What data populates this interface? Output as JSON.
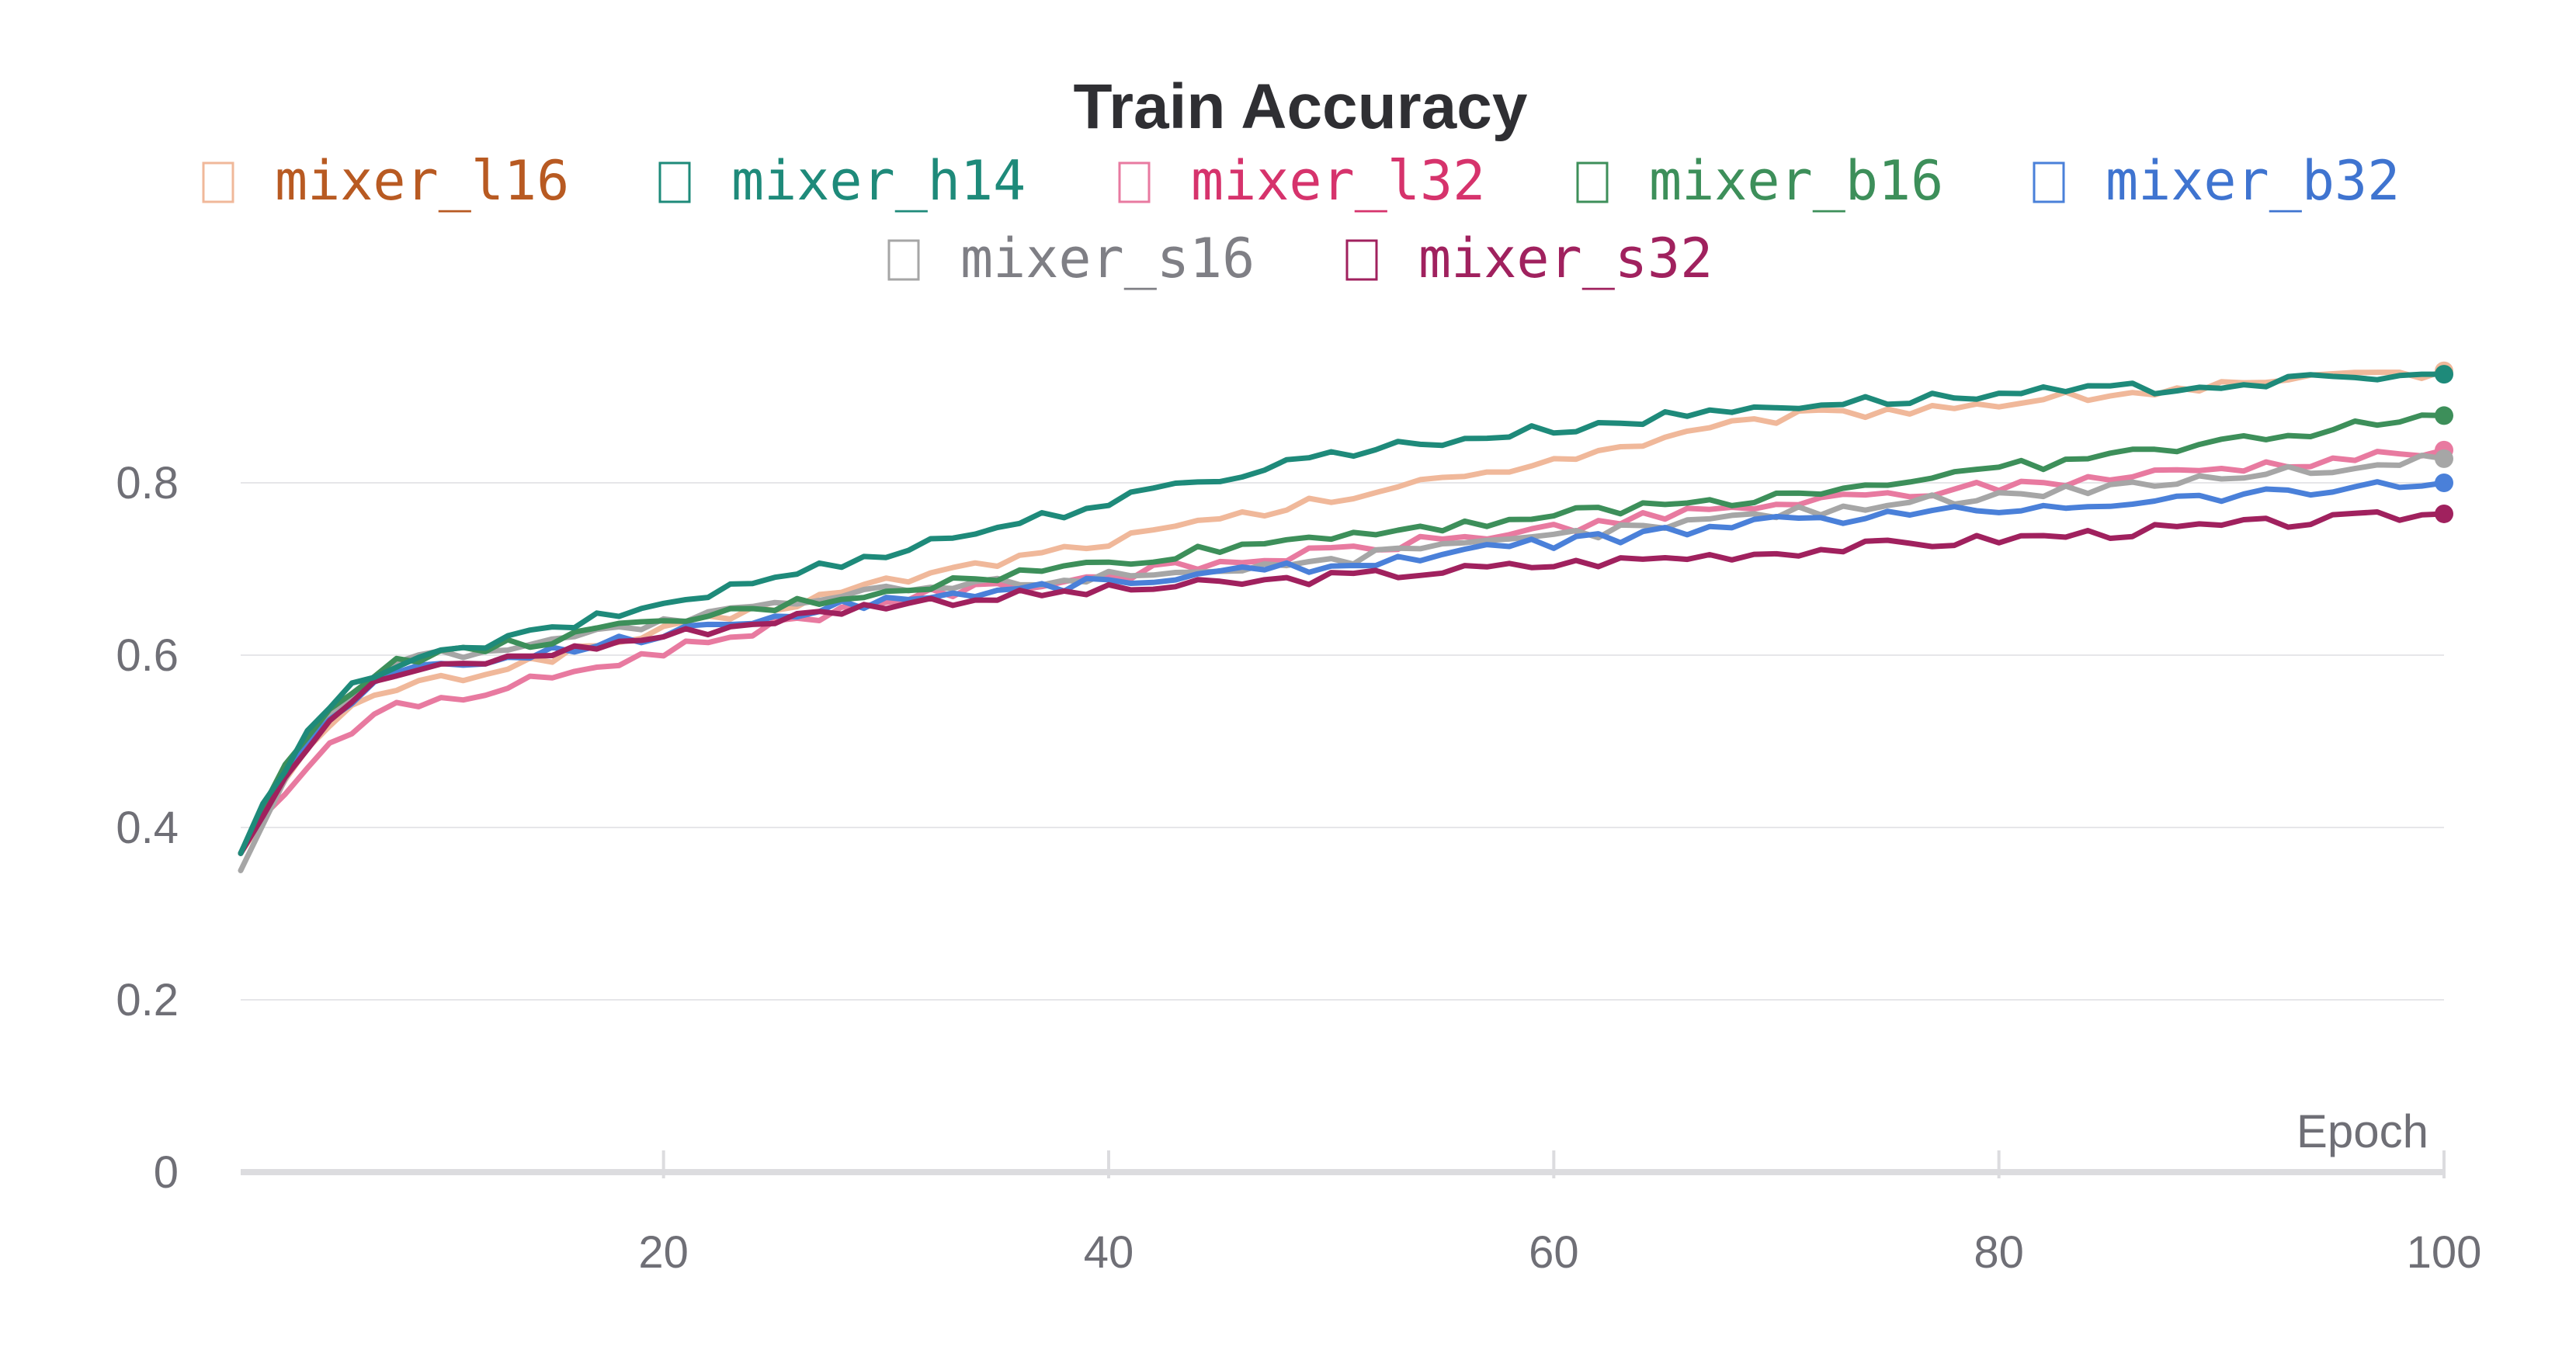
{
  "chart_data": {
    "type": "line",
    "title": "Train Accuracy",
    "xlabel": "Epoch",
    "ylabel": "",
    "xlim": [
      1,
      100
    ],
    "ylim": [
      0,
      1.0
    ],
    "xticks": [
      "20",
      "40",
      "60",
      "80",
      "100"
    ],
    "yticks": [
      "0",
      "0.2",
      "0.4",
      "0.6",
      "0.8"
    ],
    "grid": true,
    "legend_position": "top",
    "series": [
      {
        "name": "mixer_l16",
        "color": "#f0b89a",
        "text_color": "#b85a22",
        "start": 0.37,
        "p10": 0.57,
        "p30": 0.685,
        "p50": 0.78,
        "p70": 0.875,
        "end": 0.93
      },
      {
        "name": "mixer_h14",
        "color": "#1e8a7a",
        "text_color": "#1e8a7a",
        "start": 0.37,
        "p10": 0.6,
        "p30": 0.72,
        "p50": 0.835,
        "p70": 0.89,
        "end": 0.926
      },
      {
        "name": "mixer_l32",
        "color": "#e87aa0",
        "text_color": "#d6336c",
        "start": 0.37,
        "p10": 0.545,
        "p30": 0.665,
        "p50": 0.72,
        "p70": 0.775,
        "end": 0.838
      },
      {
        "name": "mixer_b16",
        "color": "#3d8f5a",
        "text_color": "#3d8f5a",
        "start": 0.37,
        "p10": 0.6,
        "p30": 0.675,
        "p50": 0.74,
        "p70": 0.785,
        "end": 0.878
      },
      {
        "name": "mixer_b32",
        "color": "#4a80d9",
        "text_color": "#3f74d0",
        "start": 0.37,
        "p10": 0.585,
        "p30": 0.665,
        "p50": 0.705,
        "p70": 0.755,
        "end": 0.8
      },
      {
        "name": "mixer_s16",
        "color": "#a6a6a6",
        "text_color": "#7f7f85",
        "start": 0.35,
        "p10": 0.6,
        "p30": 0.675,
        "p50": 0.71,
        "p70": 0.765,
        "end": 0.828
      },
      {
        "name": "mixer_s32",
        "color": "#a0215e",
        "text_color": "#a0215e",
        "start": 0.37,
        "p10": 0.585,
        "p30": 0.66,
        "p50": 0.69,
        "p70": 0.72,
        "end": 0.764
      }
    ]
  }
}
